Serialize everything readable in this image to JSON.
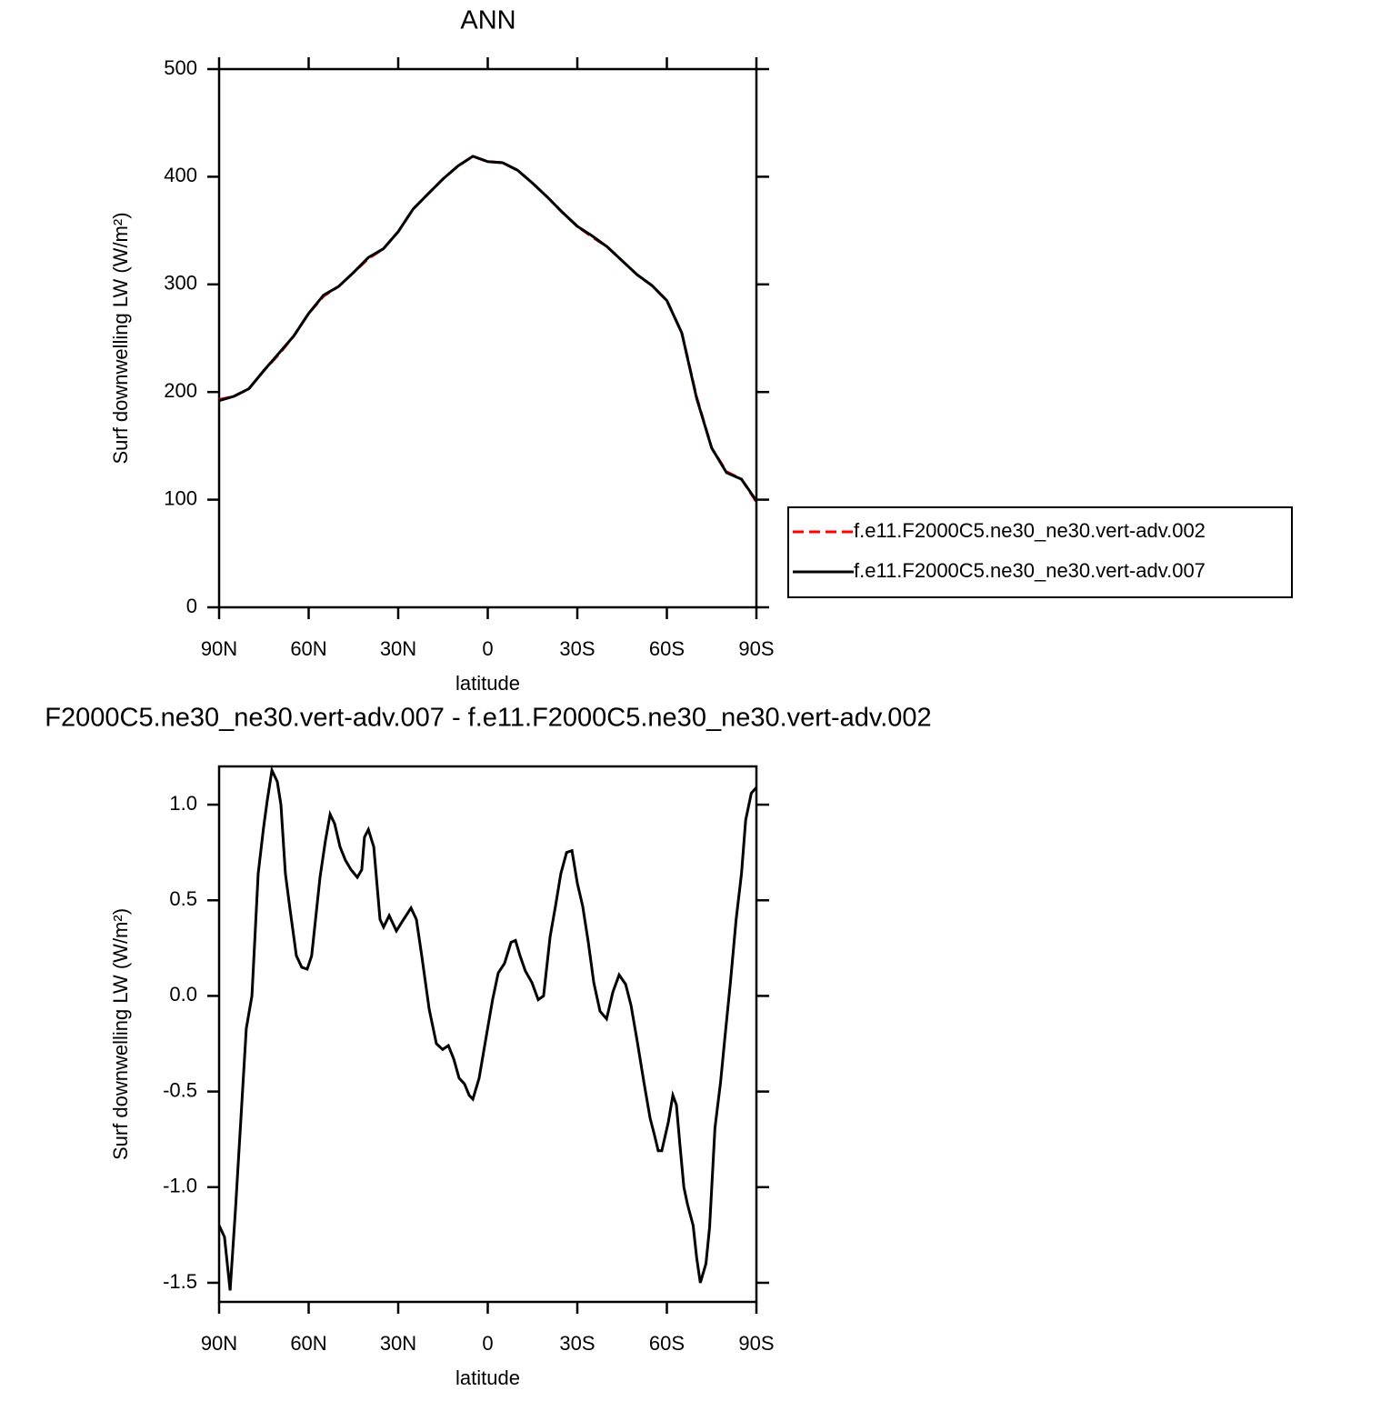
{
  "chart_data": [
    {
      "type": "line",
      "title": "ANN",
      "xlabel": "latitude",
      "ylabel": "Surf downwelling LW (W/m²)",
      "x": [
        90,
        85,
        80,
        75,
        70,
        65,
        60,
        55,
        50,
        45,
        40,
        35,
        30,
        25,
        20,
        15,
        10,
        5,
        0,
        -5,
        -10,
        -15,
        -20,
        -25,
        -30,
        -35,
        -40,
        -45,
        -50,
        -55,
        -60,
        -65,
        -70,
        -75,
        -80,
        -85,
        -90
      ],
      "series": [
        {
          "name": "f.e11.F2000C5.ne30_ne30.vert-adv.002",
          "color": "#ff0000",
          "line_style": "dashed",
          "values": [
            193,
            196,
            203,
            220,
            235,
            252,
            273,
            289,
            298,
            311,
            324,
            333,
            349,
            370,
            384,
            398,
            410,
            419,
            414,
            413,
            406,
            394,
            381,
            367,
            354,
            344,
            335,
            322,
            309,
            299,
            285,
            255,
            195,
            148,
            126,
            119,
            98
          ]
        },
        {
          "name": "f.e11.F2000C5.ne30_ne30.vert-adv.007",
          "color": "#000000",
          "line_style": "solid",
          "values": [
            192,
            196,
            203,
            220,
            236,
            252,
            273,
            290,
            298,
            311,
            325,
            333,
            349,
            370,
            384,
            398,
            410,
            419,
            414,
            413,
            406,
            394,
            381,
            367,
            354,
            345,
            335,
            322,
            309,
            299,
            285,
            255,
            194,
            148,
            125,
            119,
            99
          ]
        }
      ],
      "xlim": [
        90,
        -90
      ],
      "xticks": [
        {
          "value": 90,
          "label": "90N"
        },
        {
          "value": 60,
          "label": "60N"
        },
        {
          "value": 30,
          "label": "30N"
        },
        0,
        {
          "value": -30,
          "label": "30S"
        },
        {
          "value": -60,
          "label": "60S"
        },
        {
          "value": -90,
          "label": "90S"
        }
      ],
      "ylim": [
        0,
        500
      ],
      "yticks": [
        0,
        100,
        200,
        300,
        400,
        500
      ],
      "legend": "right"
    },
    {
      "type": "line",
      "title": "F2000C5.ne30_ne30.vert-adv.007 - f.e11.F2000C5.ne30_ne30.vert-adv.002",
      "xlabel": "latitude",
      "ylabel": "Surf downwelling LW (W/m²)",
      "x": [
        90,
        88.2,
        86.3,
        84.5,
        82.7,
        80.9,
        79,
        76.9,
        75.1,
        73.9,
        72.3,
        70.5,
        69.3,
        67.8,
        66.2,
        64.1,
        62.3,
        60.5,
        59,
        56.2,
        54.4,
        52.8,
        51.3,
        49.5,
        47.7,
        45.8,
        43.7,
        42.2,
        41.3,
        40,
        38.2,
        36.1,
        34.9,
        33,
        30.6,
        28.2,
        25.7,
        23.9,
        22.1,
        19.6,
        17.2,
        15.1,
        13.2,
        11.4,
        9.6,
        7.8,
        6.2,
        5,
        2.9,
        0.5,
        -1.6,
        -3.5,
        -5.6,
        -7.8,
        -9.3,
        -10.8,
        -12.6,
        -14.8,
        -16.9,
        -18.7,
        -20.9,
        -22.7,
        -24.5,
        -26.4,
        -28.2,
        -30,
        -31.8,
        -33.7,
        -35.5,
        -37.6,
        -39.8,
        -41.9,
        -44,
        -46.2,
        -48,
        -50.1,
        -52.3,
        -54.4,
        -55.9,
        -57.1,
        -58.3,
        -60.5,
        -62,
        -63.2,
        -64.4,
        -65.7,
        -66.9,
        -68.8,
        -70,
        -71.2,
        -73.1,
        -74.3,
        -76.1,
        -78,
        -79.5,
        -81.3,
        -83.2,
        -85,
        -86.4,
        -88.3,
        -90
      ],
      "series": [
        {
          "name": null,
          "color": "#000000",
          "line_style": "solid",
          "values": [
            -1.2,
            -1.26,
            -1.54,
            -1.11,
            -0.64,
            -0.17,
            0,
            0.64,
            0.88,
            1.02,
            1.18,
            1.12,
            1,
            0.64,
            0.45,
            0.21,
            0.15,
            0.14,
            0.21,
            0.62,
            0.81,
            0.95,
            0.9,
            0.78,
            0.71,
            0.66,
            0.62,
            0.66,
            0.83,
            0.87,
            0.78,
            0.4,
            0.36,
            0.42,
            0.34,
            0.4,
            0.46,
            0.4,
            0.21,
            -0.07,
            -0.25,
            -0.28,
            -0.26,
            -0.33,
            -0.43,
            -0.46,
            -0.52,
            -0.54,
            -0.43,
            -0.21,
            -0.02,
            0.12,
            0.17,
            0.28,
            0.29,
            0.21,
            0.13,
            0.07,
            -0.02,
            0,
            0.31,
            0.47,
            0.64,
            0.75,
            0.76,
            0.59,
            0.47,
            0.28,
            0.07,
            -0.08,
            -0.12,
            0.02,
            0.11,
            0.06,
            -0.05,
            -0.24,
            -0.45,
            -0.64,
            -0.73,
            -0.81,
            -0.81,
            -0.66,
            -0.52,
            -0.57,
            -0.78,
            -1,
            -1.09,
            -1.2,
            -1.37,
            -1.5,
            -1.4,
            -1.21,
            -0.69,
            -0.45,
            -0.21,
            0.07,
            0.4,
            0.64,
            0.92,
            1.06,
            1.09
          ]
        }
      ],
      "xlim": [
        90,
        -90
      ],
      "xticks": [
        {
          "value": 90,
          "label": "90N"
        },
        {
          "value": 60,
          "label": "60N"
        },
        {
          "value": 30,
          "label": "30N"
        },
        0,
        {
          "value": -30,
          "label": "30S"
        },
        {
          "value": -60,
          "label": "60S"
        },
        {
          "value": -90,
          "label": "90S"
        }
      ],
      "ylim": [
        -1.6,
        1.2
      ],
      "yticks": [
        -1.5,
        {
          "value": -1,
          "label": "-1.0"
        },
        -0.5,
        {
          "value": 0,
          "label": "0.0"
        },
        0.5,
        {
          "value": 1,
          "label": "1.0"
        }
      ]
    }
  ]
}
